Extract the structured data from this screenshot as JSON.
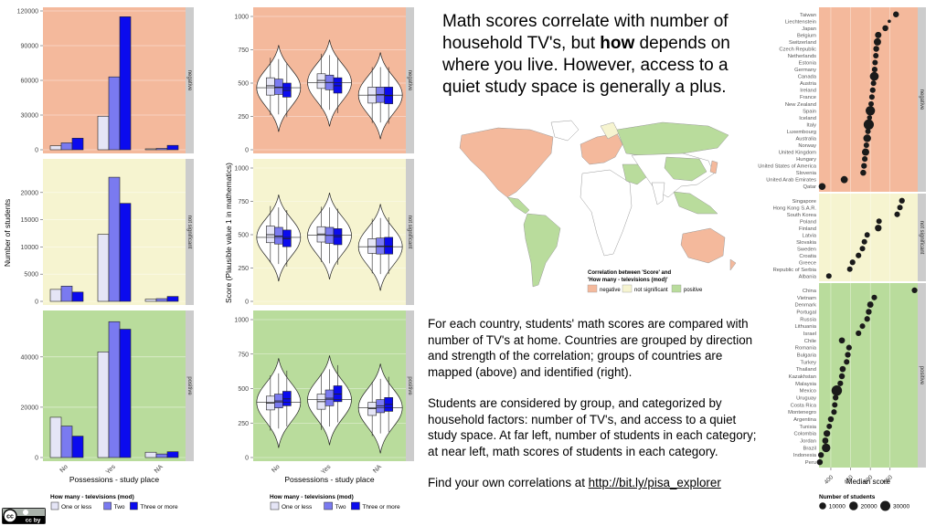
{
  "headline": {
    "part1": "Math scores correlate with number of household TV's, but ",
    "bold": "how",
    "part2": " depends on where you live. However, access to a quiet study space is generally a plus."
  },
  "description": {
    "p1": "For each country, students' math scores are compared with number of  TV's at home. Countries are grouped by direction and strength of the correlation; groups of countries are mapped (above) and identified (right).",
    "p2": "Students are considered by group, and categorized by household factors: number of TV's, and access to a quiet study space.  At far left, number of students in each category; at near left, math scores of students in each category.",
    "p3_prefix": "Find your own correlations at ",
    "link": "http://bit.ly/pisa_explorer"
  },
  "license_badge": "cc by",
  "colors": {
    "negative": "#f4b99c",
    "not_significant": "#f6f4d0",
    "positive": "#b9dc9c",
    "one_or_less": "#e5e5f6",
    "two": "#7a7af0",
    "three_or_more": "#0b0bee",
    "strip": "#cccccc"
  },
  "groups": [
    "negative",
    "not significant",
    "positive"
  ],
  "chart_data": [
    {
      "type": "bar",
      "id": "counts",
      "xlabel": "Possessions - study place",
      "ylabel": "Number of students",
      "categories": [
        "No",
        "Yes",
        "NA"
      ],
      "series_names": [
        "One or less",
        "Two",
        "Three or more"
      ],
      "legend_title": "How many - televisions (mod)",
      "facets": [
        {
          "group": "negative",
          "ylim": [
            0,
            120000
          ],
          "ticks": [
            0,
            30000,
            60000,
            90000,
            120000
          ],
          "values": [
            [
              3500,
              6000,
              10000
            ],
            [
              29000,
              63000,
              115000
            ],
            [
              800,
              1200,
              3800
            ]
          ]
        },
        {
          "group": "not significant",
          "ylim": [
            0,
            25500
          ],
          "ticks": [
            0,
            5000,
            10000,
            15000,
            20000
          ],
          "values": [
            [
              2200,
              2800,
              1700
            ],
            [
              12300,
              22800,
              18000
            ],
            [
              400,
              500,
              900
            ]
          ]
        },
        {
          "group": "positive",
          "ylim": [
            0,
            57000
          ],
          "ticks": [
            0,
            20000,
            40000
          ],
          "values": [
            [
              16000,
              12500,
              8500
            ],
            [
              42000,
              54000,
              51000
            ],
            [
              2100,
              1400,
              2300
            ]
          ]
        }
      ]
    },
    {
      "type": "violin",
      "id": "scores",
      "xlabel": "Possessions - study place",
      "ylabel": "Score (Plausible value 1 in mathematics)",
      "categories": [
        "No",
        "Yes",
        "NA"
      ],
      "series_names": [
        "One or less",
        "Two",
        "Three or more"
      ],
      "legend_title": "How many - televisions (mod)",
      "ylim": [
        0,
        1000
      ],
      "ticks": [
        0,
        250,
        500,
        750,
        1000
      ],
      "facets": [
        {
          "group": "negative",
          "medians": [
            [
              480,
              470,
              445
            ],
            [
              520,
              505,
              480
            ],
            [
              410,
              415,
              405
            ]
          ],
          "boxes": [
            [
              [
                410,
                540
              ],
              [
                415,
                530
              ],
              [
                395,
                500
              ]
            ],
            [
              [
                460,
                570
              ],
              [
                450,
                560
              ],
              [
                425,
                540
              ]
            ],
            [
              [
                350,
                470
              ],
              [
                355,
                470
              ],
              [
                345,
                470
              ]
            ]
          ],
          "violin_median": [
            465,
            505,
            410
          ]
        },
        {
          "group": "not significant",
          "medians": [
            [
              500,
              490,
              470
            ],
            [
              505,
              495,
              485
            ],
            [
              410,
              415,
              415
            ]
          ],
          "boxes": [
            [
              [
                440,
                565
              ],
              [
                430,
                555
              ],
              [
                410,
                535
              ]
            ],
            [
              [
                445,
                560
              ],
              [
                435,
                555
              ],
              [
                425,
                545
              ]
            ],
            [
              [
                360,
                470
              ],
              [
                355,
                475
              ],
              [
                355,
                480
              ]
            ]
          ],
          "violin_median": [
            480,
            495,
            410
          ]
        },
        {
          "group": "positive",
          "medians": [
            [
              395,
              410,
              425
            ],
            [
              405,
              430,
              460
            ],
            [
              355,
              375,
              385
            ]
          ],
          "boxes": [
            [
              [
                345,
                445
              ],
              [
                360,
                460
              ],
              [
                375,
                480
              ]
            ],
            [
              [
                350,
                460
              ],
              [
                375,
                490
              ],
              [
                405,
                520
              ]
            ],
            [
              [
                305,
                400
              ],
              [
                325,
                420
              ],
              [
                335,
                435
              ]
            ]
          ],
          "violin_median": [
            400,
            420,
            360
          ]
        }
      ]
    },
    {
      "type": "choropleth",
      "id": "map",
      "legend_title": "Correlation between 'Score' and\n'How many - televisions (mod)'",
      "legend_items": [
        "negative",
        "not significant",
        "positive"
      ]
    },
    {
      "type": "scatter",
      "id": "medians",
      "xlabel": "Median score",
      "xlim": [
        370,
        620
      ],
      "ticks": [
        400,
        450,
        500,
        550
      ],
      "size_legend_title": "Number of students",
      "size_legend": [
        10000,
        20000,
        30000
      ],
      "facets": [
        {
          "group": "negative",
          "points": [
            {
              "country": "Taiwan",
              "score": 565,
              "size": 6000
            },
            {
              "country": "Liechtenstein",
              "score": 548,
              "size": 300
            },
            {
              "country": "Japan",
              "score": 538,
              "size": 6000
            },
            {
              "country": "Belgium",
              "score": 520,
              "size": 8000
            },
            {
              "country": "Switzerland",
              "score": 518,
              "size": 12000
            },
            {
              "country": "Czech Republic",
              "score": 515,
              "size": 6000
            },
            {
              "country": "Netherlands",
              "score": 514,
              "size": 4500
            },
            {
              "country": "Estonia",
              "score": 512,
              "size": 4500
            },
            {
              "country": "Germany",
              "score": 511,
              "size": 5000
            },
            {
              "country": "Canada",
              "score": 510,
              "size": 21000
            },
            {
              "country": "Austria",
              "score": 508,
              "size": 4700
            },
            {
              "country": "Ireland",
              "score": 506,
              "size": 5000
            },
            {
              "country": "France",
              "score": 504,
              "size": 4600
            },
            {
              "country": "New Zealand",
              "score": 502,
              "size": 4300
            },
            {
              "country": "Spain",
              "score": 500,
              "size": 25000
            },
            {
              "country": "Iceland",
              "score": 498,
              "size": 3300
            },
            {
              "country": "Italy",
              "score": 496,
              "size": 31000
            },
            {
              "country": "Luxembourg",
              "score": 494,
              "size": 4600
            },
            {
              "country": "Australia",
              "score": 492,
              "size": 14000
            },
            {
              "country": "Norway",
              "score": 490,
              "size": 4700
            },
            {
              "country": "United Kingdom",
              "score": 488,
              "size": 12000
            },
            {
              "country": "Hungary",
              "score": 486,
              "size": 4800
            },
            {
              "country": "United States of America",
              "score": 484,
              "size": 5200
            },
            {
              "country": "Slovenia",
              "score": 482,
              "size": 6000
            },
            {
              "country": "United Arab Emirates",
              "score": 434,
              "size": 11000
            },
            {
              "country": "Qatar",
              "score": 378,
              "size": 10000
            }
          ]
        },
        {
          "group": "not significant",
          "points": [
            {
              "country": "Singapore",
              "score": 580,
              "size": 5500
            },
            {
              "country": "Hong Kong S.A.R.",
              "score": 575,
              "size": 4700
            },
            {
              "country": "South Korea",
              "score": 568,
              "size": 5000
            },
            {
              "country": "Poland",
              "score": 522,
              "size": 4600
            },
            {
              "country": "Finland",
              "score": 520,
              "size": 8800
            },
            {
              "country": "Latvia",
              "score": 492,
              "size": 4300
            },
            {
              "country": "Slovakia",
              "score": 485,
              "size": 4700
            },
            {
              "country": "Sweden",
              "score": 480,
              "size": 4700
            },
            {
              "country": "Croatia",
              "score": 470,
              "size": 5000
            },
            {
              "country": "Greece",
              "score": 455,
              "size": 5100
            },
            {
              "country": "Republic of Serbia",
              "score": 448,
              "size": 4700
            },
            {
              "country": "Albania",
              "score": 395,
              "size": 4700
            }
          ]
        },
        {
          "group": "positive",
          "points": [
            {
              "country": "China",
              "score": 612,
              "size": 5200
            },
            {
              "country": "Vietnam",
              "score": 510,
              "size": 4900
            },
            {
              "country": "Denmark",
              "score": 500,
              "size": 7500
            },
            {
              "country": "Portugal",
              "score": 496,
              "size": 5700
            },
            {
              "country": "Russia",
              "score": 492,
              "size": 5200
            },
            {
              "country": "Lithuania",
              "score": 480,
              "size": 4600
            },
            {
              "country": "Israel",
              "score": 470,
              "size": 5000
            },
            {
              "country": "Chile",
              "score": 428,
              "size": 6800
            },
            {
              "country": "Romania",
              "score": 446,
              "size": 5100
            },
            {
              "country": "Bulgaria",
              "score": 443,
              "size": 5300
            },
            {
              "country": "Turkey",
              "score": 440,
              "size": 4800
            },
            {
              "country": "Thailand",
              "score": 430,
              "size": 6600
            },
            {
              "country": "Kazakhstan",
              "score": 428,
              "size": 5800
            },
            {
              "country": "Malaysia",
              "score": 424,
              "size": 5200
            },
            {
              "country": "Mexico",
              "score": 415,
              "size": 33000
            },
            {
              "country": "Uruguay",
              "score": 412,
              "size": 5300
            },
            {
              "country": "Costa Rica",
              "score": 410,
              "size": 4600
            },
            {
              "country": "Montenegro",
              "score": 408,
              "size": 4700
            },
            {
              "country": "Argentina",
              "score": 400,
              "size": 5900
            },
            {
              "country": "Tunisia",
              "score": 396,
              "size": 4400
            },
            {
              "country": "Colombia",
              "score": 390,
              "size": 9000
            },
            {
              "country": "Jordan",
              "score": 386,
              "size": 7000
            },
            {
              "country": "Brazil",
              "score": 388,
              "size": 19000
            },
            {
              "country": "Indonesia",
              "score": 375,
              "size": 5600
            },
            {
              "country": "Peru",
              "score": 372,
              "size": 6000
            }
          ]
        }
      ]
    }
  ]
}
